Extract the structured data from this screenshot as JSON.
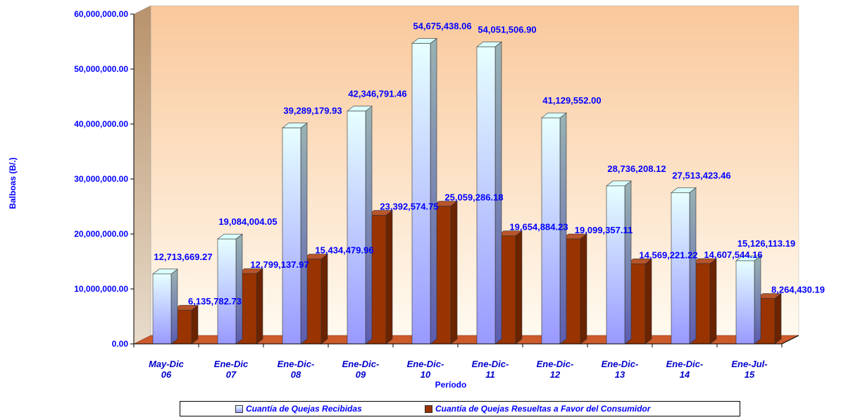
{
  "chart_data": {
    "type": "bar",
    "categories": [
      [
        "May-Dic",
        "06"
      ],
      [
        "Ene-Dic",
        "07"
      ],
      [
        "Ene-Dic-",
        "08"
      ],
      [
        "Ene-Dic-",
        "09"
      ],
      [
        "Ene-Dic-",
        "10"
      ],
      [
        "Ene-Dic-",
        "11"
      ],
      [
        "Ene-Dic-",
        "12"
      ],
      [
        "Ene-Dic-",
        "13"
      ],
      [
        "Ene-Dic-",
        "14"
      ],
      [
        "Ene-Jul-",
        "15"
      ]
    ],
    "series": [
      {
        "name": "Cuantía de Quejas Recibidas",
        "values": [
          12713669.27,
          19084004.05,
          39289179.93,
          42346791.46,
          54675438.06,
          54051506.9,
          41129552.0,
          28736208.12,
          27513423.46,
          15126113.19
        ],
        "labels": [
          "12,713,669.27",
          "19,084,004.05",
          "39,289,179.93",
          "42,346,791.46",
          "54,675,438.06",
          "54,051,506.90",
          "41,129,552.00",
          "28,736,208.12",
          "27,513,423.46",
          "15,126,113.19"
        ],
        "color_top": "#e6ffff",
        "color_bottom": "#9999ff"
      },
      {
        "name": "Cuantía de Quejas Resueltas a Favor del Consumidor",
        "values": [
          6135782.73,
          12799137.97,
          15434479.96,
          23392574.75,
          25059286.18,
          19654884.23,
          19099357.11,
          14569221.22,
          14607544.16,
          8264430.19
        ],
        "labels": [
          "6,135,782.73",
          "12,799,137.97",
          "15,434,479.96",
          "23,392,574.75",
          "25,059,286.18",
          "19,654,884.23",
          "19,099,357.11",
          "14,569,221.22",
          "14,607,544.16",
          "8,264,430.19"
        ],
        "color": "#993300"
      }
    ],
    "xlabel": "Período",
    "ylabel": "Balboas (B/.)",
    "ylim": [
      0,
      60000000
    ],
    "yticks": [
      "0.00",
      "10,000,000.00",
      "20,000,000.00",
      "30,000,000.00",
      "40,000,000.00",
      "50,000,000.00",
      "60,000,000.00"
    ],
    "grid": false,
    "legend_position": "bottom",
    "colors": {
      "label_text": "#0000ff",
      "category_text": "#0000cc",
      "wall_top": "#f9c89b",
      "wall_bottom": "#fffaf0",
      "floor": "#cc5a2b"
    }
  }
}
